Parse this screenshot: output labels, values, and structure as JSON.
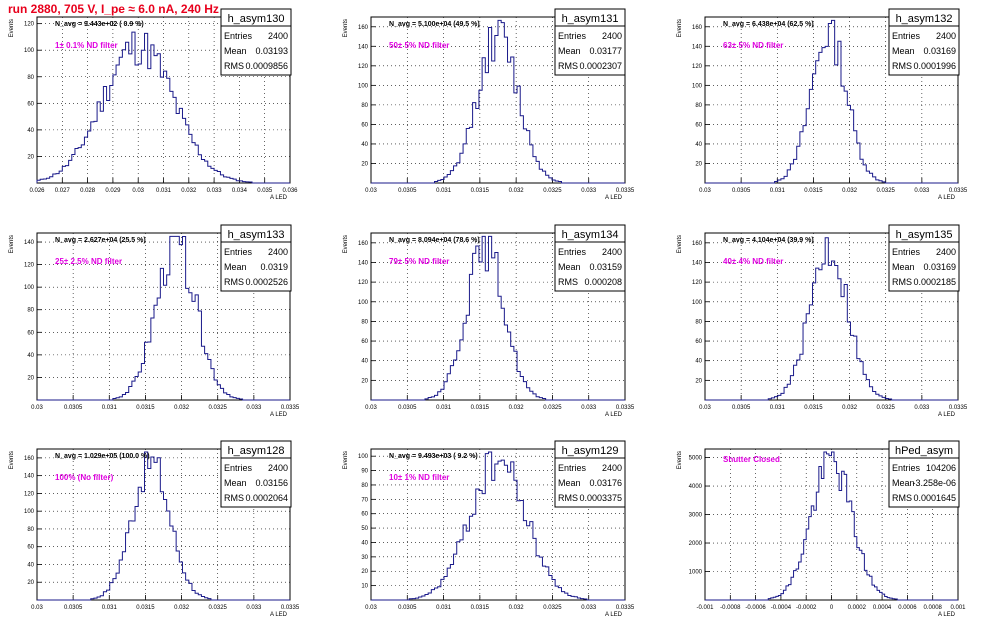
{
  "page_title": "run 2880,   705 V, I_pe ≈ 6.0 nA, 240 Hz",
  "chart_data": [
    {
      "type": "bar",
      "name": "h_asym130",
      "stats": {
        "entries": "2400",
        "mean": "0.03193",
        "rms": "0.0009856"
      },
      "navg_text": "N_avg = 9.443e+02 ( 0.9 %)",
      "filter_text": "1± 0.1% ND filter",
      "ylabel": "Events",
      "xlabel": "A_{LED}",
      "xlim": [
        0.026,
        0.036
      ],
      "ylim": [
        0,
        125
      ],
      "x_ticks": [
        "0.026",
        "0.027",
        "0.028",
        "0.029",
        "0.03",
        "0.031",
        "0.032",
        "0.033",
        "0.034",
        "0.035",
        "0.036"
      ],
      "y_ticks": [
        "20",
        "40",
        "60",
        "80",
        "100",
        "120"
      ]
    },
    {
      "type": "bar",
      "name": "h_asym131",
      "stats": {
        "entries": "2400",
        "mean": "0.03177",
        "rms": "0.0002307"
      },
      "navg_text": "N_avg = 5.100e+04 (49.5 %)",
      "filter_text": "50± 5% ND filter",
      "ylabel": "Events",
      "xlabel": "A_{LED}",
      "xlim": [
        0.03,
        0.0335
      ],
      "ylim": [
        0,
        170
      ],
      "x_ticks": [
        "0.03",
        "0.0305",
        "0.031",
        "0.0315",
        "0.032",
        "0.0325",
        "0.033",
        "0.0335"
      ],
      "y_ticks": [
        "20",
        "40",
        "60",
        "80",
        "100",
        "120",
        "140",
        "160"
      ]
    },
    {
      "type": "bar",
      "name": "h_asym132",
      "stats": {
        "entries": "2400",
        "mean": "0.03169",
        "rms": "0.0001996"
      },
      "navg_text": "N_avg = 6.438e+04 (62.5 %)",
      "filter_text": "63± 5% ND filter",
      "ylabel": "Events",
      "xlabel": "A_{LED}",
      "xlim": [
        0.03,
        0.0335
      ],
      "ylim": [
        0,
        170
      ],
      "x_ticks": [
        "0.03",
        "0.0305",
        "0.031",
        "0.0315",
        "0.032",
        "0.0325",
        "0.033",
        "0.0335"
      ],
      "y_ticks": [
        "20",
        "40",
        "60",
        "80",
        "100",
        "120",
        "140",
        "160"
      ]
    },
    {
      "type": "bar",
      "name": "h_asym133",
      "stats": {
        "entries": "2400",
        "mean": "0.0319",
        "rms": "0.0002526"
      },
      "navg_text": "N_avg = 2.627e+04 (25.5 %)",
      "filter_text": "25± 2.5% ND filter",
      "ylabel": "Events",
      "xlabel": "A_{LED}",
      "xlim": [
        0.03,
        0.0335
      ],
      "ylim": [
        0,
        148
      ],
      "x_ticks": [
        "0.03",
        "0.0305",
        "0.031",
        "0.0315",
        "0.032",
        "0.0325",
        "0.033",
        "0.0335"
      ],
      "y_ticks": [
        "20",
        "40",
        "60",
        "80",
        "100",
        "120",
        "140"
      ]
    },
    {
      "type": "bar",
      "name": "h_asym134",
      "stats": {
        "entries": "2400",
        "mean": "0.03159",
        "rms": "0.000208"
      },
      "navg_text": "N_avg = 8.094e+04 (78.6 %)",
      "filter_text": "79± 5% ND filter",
      "ylabel": "Events",
      "xlabel": "A_{LED}",
      "xlim": [
        0.03,
        0.0335
      ],
      "ylim": [
        0,
        170
      ],
      "x_ticks": [
        "0.03",
        "0.0305",
        "0.031",
        "0.0315",
        "0.032",
        "0.0325",
        "0.033",
        "0.0335"
      ],
      "y_ticks": [
        "20",
        "40",
        "60",
        "80",
        "100",
        "120",
        "140",
        "160"
      ]
    },
    {
      "type": "bar",
      "name": "h_asym135",
      "stats": {
        "entries": "2400",
        "mean": "0.03169",
        "rms": "0.0002185"
      },
      "navg_text": "N_avg = 4.104e+04 (39.9 %)",
      "filter_text": "40± 4% ND filter",
      "ylabel": "Events",
      "xlabel": "A_{LED}",
      "xlim": [
        0.03,
        0.0335
      ],
      "ylim": [
        0,
        170
      ],
      "x_ticks": [
        "0.03",
        "0.0305",
        "0.031",
        "0.0315",
        "0.032",
        "0.0325",
        "0.033",
        "0.0335"
      ],
      "y_ticks": [
        "20",
        "40",
        "60",
        "80",
        "100",
        "120",
        "140",
        "160"
      ]
    },
    {
      "type": "bar",
      "name": "h_asym128",
      "stats": {
        "entries": "2400",
        "mean": "0.03156",
        "rms": "0.0002064"
      },
      "navg_text": "N_avg = 1.029e+05 (100.0 %)",
      "filter_text": "100% (No filter)",
      "ylabel": "Events",
      "xlabel": "A_{LED}",
      "xlim": [
        0.03,
        0.0335
      ],
      "ylim": [
        0,
        170
      ],
      "x_ticks": [
        "0.03",
        "0.0305",
        "0.031",
        "0.0315",
        "0.032",
        "0.0325",
        "0.033",
        "0.0335"
      ],
      "y_ticks": [
        "20",
        "40",
        "60",
        "80",
        "100",
        "120",
        "140",
        "160"
      ]
    },
    {
      "type": "bar",
      "name": "h_asym129",
      "stats": {
        "entries": "2400",
        "mean": "0.03176",
        "rms": "0.0003375"
      },
      "navg_text": "N_avg = 9.493e+03 ( 9.2 %)",
      "filter_text": "10± 1% ND filter",
      "ylabel": "Events",
      "xlabel": "A_{LED}",
      "xlim": [
        0.03,
        0.0335
      ],
      "ylim": [
        0,
        105
      ],
      "x_ticks": [
        "0.03",
        "0.0305",
        "0.031",
        "0.0315",
        "0.032",
        "0.0325",
        "0.033",
        "0.0335"
      ],
      "y_ticks": [
        "10",
        "20",
        "30",
        "40",
        "50",
        "60",
        "70",
        "80",
        "90",
        "100"
      ]
    },
    {
      "type": "bar",
      "name": "hPed_asym",
      "stats": {
        "entries": "104206",
        "mean": "-3.258e-06",
        "rms": "0.0001645"
      },
      "navg_text": "",
      "filter_text": "Shutter Closed",
      "ylabel": "Events",
      "xlabel": "A_{LED}",
      "xlim": [
        -0.001,
        0.001
      ],
      "ylim": [
        0,
        5300
      ],
      "x_ticks": [
        "-0.001",
        "-0.0008",
        "-0.0006",
        "-0.0004",
        "-0.0002",
        "0",
        "0.0002",
        "0.0004",
        "0.0006",
        "0.0008",
        "0.001"
      ],
      "y_ticks": [
        "1000",
        "2000",
        "3000",
        "4000",
        "5000"
      ]
    }
  ],
  "colors": {
    "title": "#e8001c",
    "annotation": "#e000e0",
    "histogram": "#1a1a8a",
    "grid": "#000000"
  }
}
